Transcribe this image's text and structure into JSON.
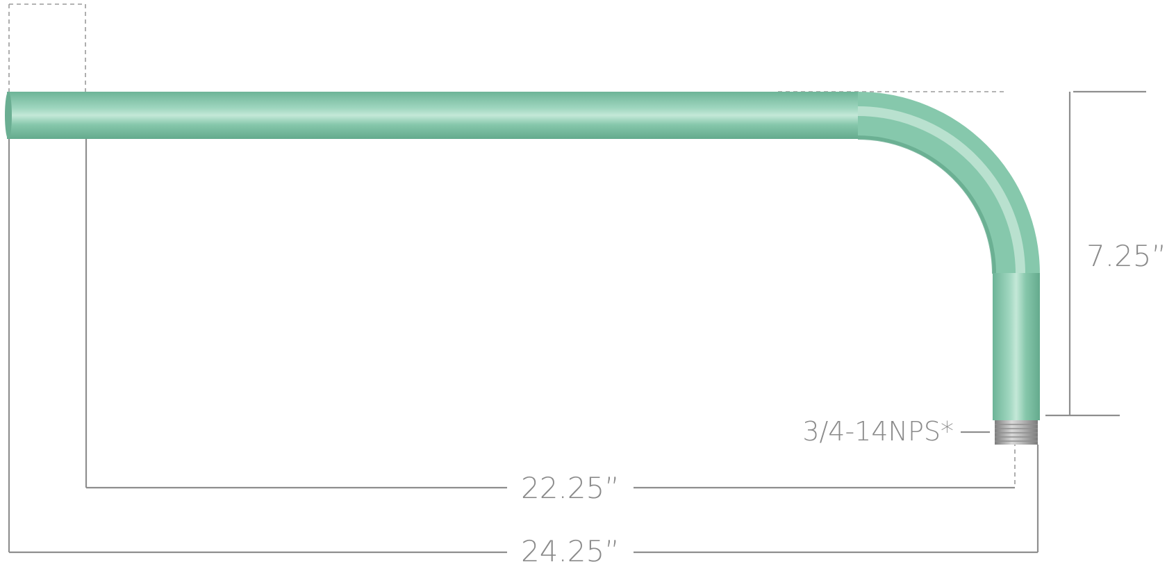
{
  "colors": {
    "pipe": "#7cc3a6",
    "pipe_highlight": "#c9eadb",
    "pipe_shadow": "#5fa88a",
    "dimension": "#8e8e8e",
    "thread": "#a9a9a9",
    "background": "#ffffff"
  },
  "dimensions": {
    "height": "7.25”",
    "thread": "3/4-14NPS*",
    "inner_length": "22.25”",
    "overall_length": "24.25”"
  }
}
